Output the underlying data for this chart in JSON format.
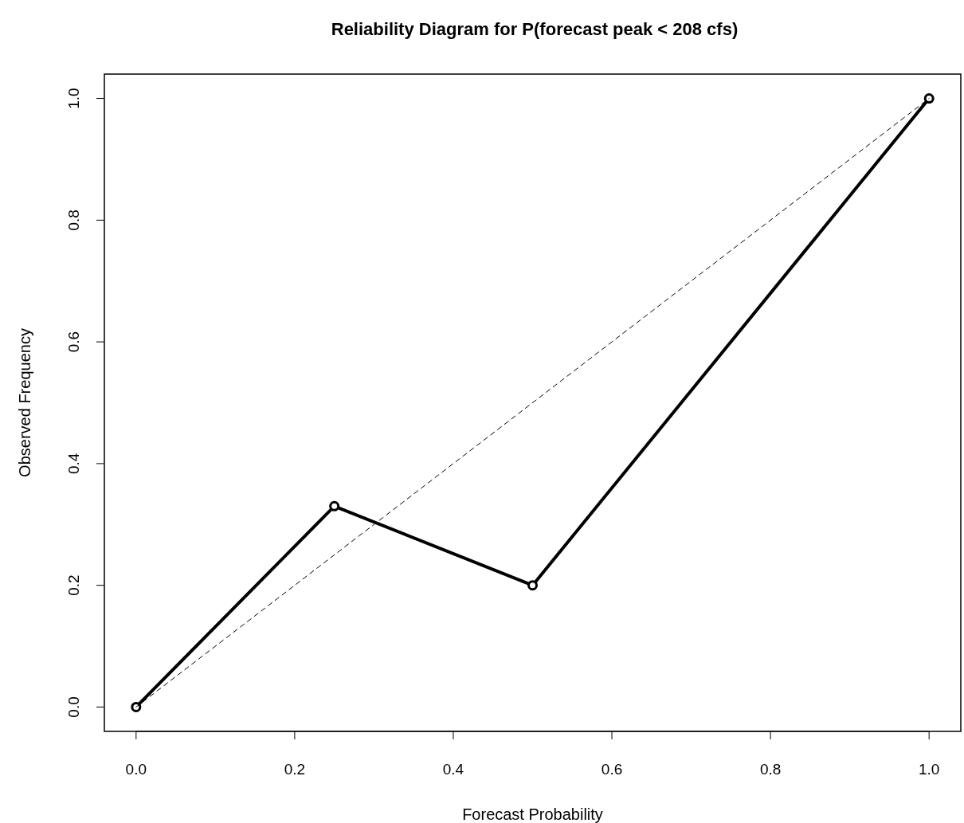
{
  "chart_data": {
    "type": "line",
    "title": "Reliability Diagram for P(forecast peak < 208 cfs)",
    "xlabel": "Forecast Probability",
    "ylabel": "Observed Frequency",
    "xlim": [
      -0.04,
      1.04
    ],
    "ylim": [
      -0.04,
      1.04
    ],
    "xticks": [
      {
        "value": 0,
        "label": "0.0"
      },
      0.2,
      0.4,
      0.6,
      0.8,
      {
        "value": 1,
        "label": "1.0"
      }
    ],
    "yticks": [
      {
        "value": 0,
        "label": "0.0"
      },
      0.2,
      0.4,
      0.6,
      0.8,
      {
        "value": 1,
        "label": "1.0"
      }
    ],
    "grid": false,
    "series": [
      {
        "color": "#000000",
        "x": [
          0,
          0.25,
          0.5,
          1
        ],
        "values": [
          0,
          0.33,
          0.2,
          1
        ],
        "marker": "circle",
        "line_style": "solid"
      },
      {
        "color": "#000000",
        "x": [
          0,
          1
        ],
        "values": [
          0,
          1
        ],
        "marker": "none",
        "line_style": "dashed"
      }
    ]
  }
}
